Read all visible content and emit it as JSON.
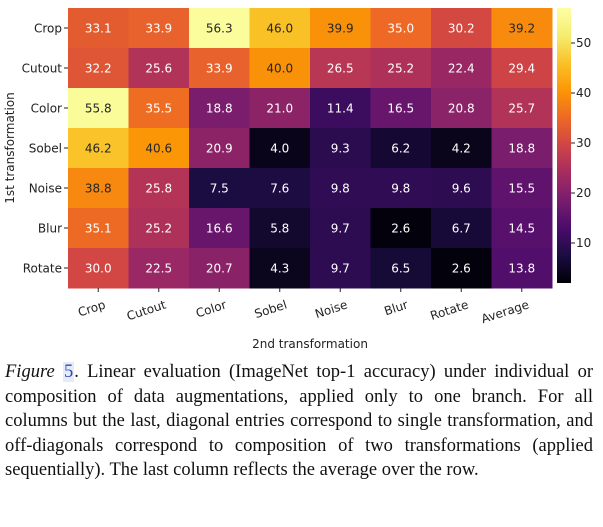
{
  "chart_data": {
    "type": "heatmap",
    "xlabel": "2nd transformation",
    "ylabel": "1st transformation",
    "x_categories": [
      "Crop",
      "Cutout",
      "Color",
      "Sobel",
      "Noise",
      "Blur",
      "Rotate",
      "Average"
    ],
    "y_categories": [
      "Crop",
      "Cutout",
      "Color",
      "Sobel",
      "Noise",
      "Blur",
      "Rotate"
    ],
    "values": [
      [
        33.1,
        33.9,
        56.3,
        46.0,
        39.9,
        35.0,
        30.2,
        39.2
      ],
      [
        32.2,
        25.6,
        33.9,
        40.0,
        26.5,
        25.2,
        22.4,
        29.4
      ],
      [
        55.8,
        35.5,
        18.8,
        21.0,
        11.4,
        16.5,
        20.8,
        25.7
      ],
      [
        46.2,
        40.6,
        20.9,
        4.0,
        9.3,
        6.2,
        4.2,
        18.8
      ],
      [
        38.8,
        25.8,
        7.5,
        7.6,
        9.8,
        9.8,
        9.6,
        15.5
      ],
      [
        35.1,
        25.2,
        16.6,
        5.8,
        9.7,
        2.6,
        6.7,
        14.5
      ],
      [
        30.0,
        22.5,
        20.7,
        4.3,
        9.7,
        6.5,
        2.6,
        13.8
      ]
    ],
    "colormap": "inferno",
    "vmin": 2,
    "vmax": 57,
    "colorbar_ticks": [
      10,
      20,
      30,
      40,
      50
    ]
  },
  "caption": {
    "label": "Figure",
    "number": "5",
    "text": ". Linear evaluation (ImageNet top-1 accuracy) under individual or composition of data augmentations, applied only to one branch. For all columns but the last, diagonal entries correspond to single transformation, and off-diagonals correspond to composition of two transformations (applied sequentially). The last column reflects the average over the row."
  }
}
